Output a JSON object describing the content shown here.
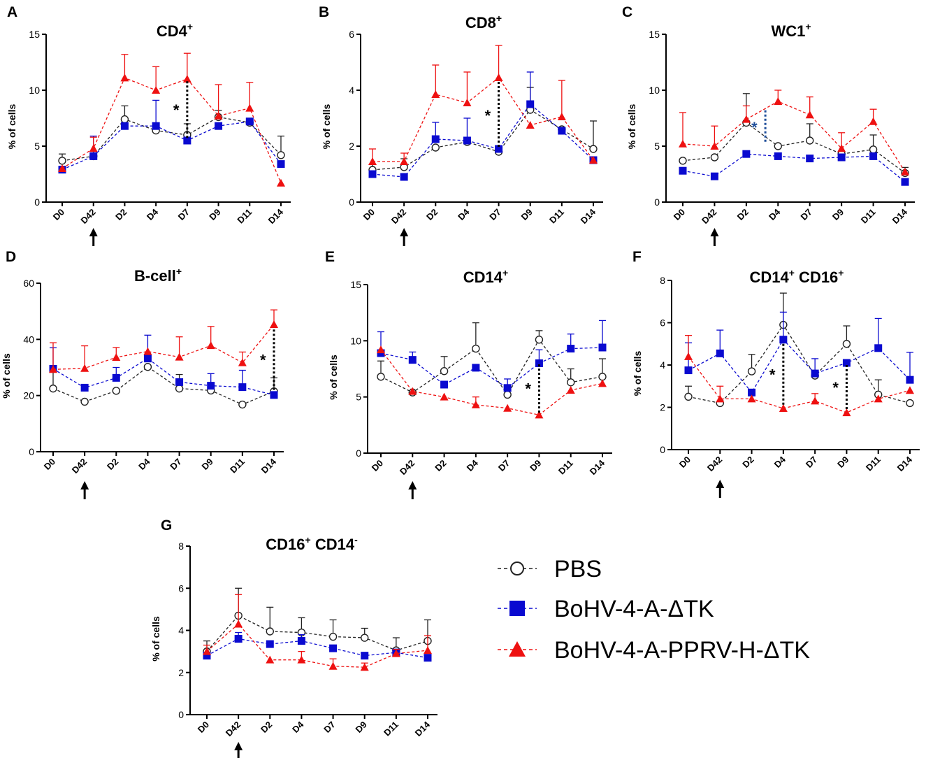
{
  "colors": {
    "pbs": "#222222",
    "ctrl": "#0a0ad0",
    "vacc": "#ee1111",
    "axis": "#000000",
    "star_blue": "#1f4e9a"
  },
  "legend": [
    {
      "label": "PBS",
      "marker": "circle",
      "color": "#222222"
    },
    {
      "label": "BoHV-4-A-ΔTK",
      "marker": "square",
      "color": "#0a0ad0"
    },
    {
      "label": "BoHV-4-A-PPRV-H-ΔTK",
      "marker": "triangle",
      "color": "#ee1111"
    }
  ],
  "chart_data": [
    {
      "panel": "A",
      "type": "line",
      "title": "CD4",
      "title_sup": "+",
      "ylabel": "% of cells",
      "categories": [
        "D0",
        "D42",
        "D2",
        "D4",
        "D7",
        "D9",
        "D11",
        "D14"
      ],
      "ylim": [
        0,
        15
      ],
      "yticks": [
        "0",
        "5",
        "10",
        "15"
      ],
      "arrow_category": "D42",
      "series": [
        {
          "name": "PBS",
          "values": [
            3.7,
            4.1,
            7.4,
            6.4,
            6.0,
            7.6,
            7.1,
            4.2
          ],
          "err": [
            0.6,
            0,
            1.2,
            0,
            1.0,
            0.6,
            0.4,
            1.7
          ]
        },
        {
          "name": "BoHV-4-A-ΔTK",
          "values": [
            2.9,
            4.1,
            6.8,
            6.8,
            5.5,
            6.8,
            7.2,
            3.4
          ],
          "err": [
            0,
            1.8,
            0,
            2.3,
            0,
            0,
            0,
            0
          ]
        },
        {
          "name": "BoHV-4-A-PPRV-H-ΔTK",
          "values": [
            3.0,
            4.8,
            11.1,
            10.0,
            11.0,
            7.7,
            8.4,
            1.7
          ],
          "err": [
            0,
            1.0,
            2.1,
            2.1,
            2.3,
            2.8,
            2.3,
            0
          ]
        }
      ],
      "significance": [
        {
          "category_index": 4,
          "from": 10.8,
          "to": 5.7,
          "label": "*"
        }
      ]
    },
    {
      "panel": "B",
      "type": "line",
      "title": "CD8",
      "title_sup": "+",
      "ylabel": "% of cells",
      "categories": [
        "D0",
        "D42",
        "D2",
        "D4",
        "D7",
        "D9",
        "D11",
        "D14"
      ],
      "ylim": [
        0,
        6
      ],
      "yticks": [
        "0",
        "2",
        "4",
        "6"
      ],
      "arrow_category": "D42",
      "series": [
        {
          "name": "PBS",
          "values": [
            1.15,
            1.25,
            1.95,
            2.15,
            1.8,
            3.3,
            2.6,
            1.9
          ],
          "err": [
            0.2,
            0.3,
            0,
            0,
            0,
            0.8,
            0,
            1.0
          ]
        },
        {
          "name": "BoHV-4-A-ΔTK",
          "values": [
            1.0,
            0.9,
            2.25,
            2.2,
            1.9,
            3.5,
            2.55,
            1.5
          ],
          "err": [
            0,
            0,
            0.6,
            0.8,
            0,
            1.15,
            0,
            0
          ]
        },
        {
          "name": "BoHV-4-A-PPRV-H-ΔTK",
          "values": [
            1.45,
            1.45,
            3.85,
            3.55,
            4.45,
            2.75,
            3.05,
            1.5
          ],
          "err": [
            0.45,
            0.3,
            1.05,
            1.1,
            1.15,
            0,
            1.3,
            0
          ]
        }
      ],
      "significance": [
        {
          "category_index": 4,
          "from": 4.3,
          "to": 1.9,
          "label": "*"
        }
      ]
    },
    {
      "panel": "C",
      "type": "line",
      "title": "WC1",
      "title_sup": "+",
      "ylabel": "% of cells",
      "categories": [
        "D0",
        "D42",
        "D2",
        "D4",
        "D7",
        "D9",
        "D11",
        "D14"
      ],
      "ylim": [
        0,
        15
      ],
      "yticks": [
        "0",
        "5",
        "10",
        "15"
      ],
      "arrow_category": "D42",
      "series": [
        {
          "name": "PBS",
          "values": [
            3.7,
            4.0,
            7.1,
            5.0,
            5.5,
            4.3,
            4.7,
            2.6
          ],
          "err": [
            0,
            0,
            2.6,
            0,
            1.5,
            0,
            1.3,
            0.5
          ]
        },
        {
          "name": "BoHV-4-A-ΔTK",
          "values": [
            2.8,
            2.3,
            4.3,
            4.1,
            3.9,
            4.0,
            4.1,
            1.8
          ],
          "err": [
            0,
            0,
            0,
            0,
            0,
            0,
            0,
            0
          ]
        },
        {
          "name": "BoHV-4-A-PPRV-H-ΔTK",
          "values": [
            5.2,
            5.0,
            7.4,
            9.0,
            7.8,
            4.8,
            7.2,
            2.7
          ],
          "err": [
            2.8,
            1.8,
            1.2,
            1.0,
            1.6,
            1.4,
            1.1,
            0
          ]
        }
      ],
      "significance": [
        {
          "category_index": 2.6,
          "from": 8.2,
          "to": 5.2,
          "label": "*",
          "color": "blue"
        }
      ]
    },
    {
      "panel": "D",
      "type": "line",
      "title": "B-cell",
      "title_sup": "+",
      "ylabel": "% of cells",
      "categories": [
        "D0",
        "D42",
        "D2",
        "D4",
        "D7",
        "D9",
        "D11",
        "D14"
      ],
      "ylim": [
        0,
        60
      ],
      "yticks": [
        "0",
        "20",
        "40",
        "60"
      ],
      "arrow_category": "D42",
      "series": [
        {
          "name": "PBS",
          "values": [
            22.5,
            17.8,
            21.7,
            30.2,
            22.5,
            21.8,
            16.8,
            21.5
          ],
          "err": [
            6.5,
            0,
            0,
            0,
            5.0,
            0,
            0,
            4.8
          ]
        },
        {
          "name": "BoHV-4-A-ΔTK",
          "values": [
            29.5,
            22.8,
            26.3,
            33.2,
            24.8,
            23.5,
            23.0,
            20.2
          ],
          "err": [
            7.5,
            0,
            3.7,
            8.3,
            0,
            4.3,
            6.0,
            0
          ]
        },
        {
          "name": "BoHV-4-A-PPRV-H-ΔTK",
          "values": [
            29.3,
            29.7,
            33.6,
            35.7,
            33.7,
            37.8,
            31.7,
            45.3
          ],
          "err": [
            9.5,
            8.0,
            3.5,
            0,
            7.2,
            6.8,
            3.8,
            5.2
          ]
        }
      ],
      "significance": [
        {
          "category_index": 7,
          "from": 43.5,
          "to": 22.0,
          "label": "*"
        }
      ]
    },
    {
      "panel": "E",
      "type": "line",
      "title": "CD14",
      "title_sup": "+",
      "ylabel": "% of cells",
      "categories": [
        "D0",
        "D42",
        "D2",
        "D4",
        "D7",
        "D9",
        "D11",
        "D14"
      ],
      "ylim": [
        0,
        15
      ],
      "yticks": [
        "0",
        "5",
        "10",
        "15"
      ],
      "arrow_category": "D42",
      "series": [
        {
          "name": "PBS",
          "values": [
            6.8,
            5.4,
            7.3,
            9.3,
            5.2,
            10.1,
            6.3,
            6.8
          ],
          "err": [
            1.4,
            0,
            1.3,
            2.3,
            0,
            0.8,
            1.2,
            1.6
          ]
        },
        {
          "name": "BoHV-4-A-ΔTK",
          "values": [
            8.9,
            8.3,
            6.1,
            7.6,
            5.8,
            8.0,
            9.3,
            9.4
          ],
          "err": [
            1.9,
            0.7,
            0,
            0,
            0.8,
            1.2,
            1.3,
            2.4
          ]
        },
        {
          "name": "BoHV-4-A-PPRV-H-ΔTK",
          "values": [
            9.2,
            5.5,
            5.0,
            4.3,
            4.0,
            3.4,
            5.6,
            6.2
          ],
          "err": [
            0,
            0,
            0,
            0.7,
            0,
            0,
            0,
            0
          ]
        }
      ],
      "significance": [
        {
          "category_index": 5,
          "from": 7.9,
          "to": 3.6,
          "label": "*"
        }
      ]
    },
    {
      "panel": "F",
      "type": "line",
      "title": "CD14",
      "title_sup": "+",
      "title2": " CD16",
      "title2_sup": "+",
      "ylabel": "% of cells",
      "categories": [
        "D0",
        "D42",
        "D2",
        "D4",
        "D7",
        "D9",
        "D11",
        "D14"
      ],
      "ylim": [
        0,
        8
      ],
      "yticks": [
        "0",
        "2",
        "4",
        "6",
        "8"
      ],
      "arrow_category": "D42",
      "series": [
        {
          "name": "PBS",
          "values": [
            2.5,
            2.2,
            3.7,
            5.9,
            3.5,
            5.0,
            2.6,
            2.2
          ],
          "err": [
            0.5,
            0,
            0.8,
            1.5,
            0,
            0.85,
            0.7,
            0
          ]
        },
        {
          "name": "BoHV-4-A-ΔTK",
          "values": [
            3.75,
            4.55,
            2.7,
            5.2,
            3.6,
            4.1,
            4.8,
            3.3
          ],
          "err": [
            1.3,
            1.1,
            0,
            1.3,
            0.7,
            0,
            1.4,
            1.3
          ]
        },
        {
          "name": "BoHV-4-A-PPRV-H-ΔTK",
          "values": [
            4.4,
            2.4,
            2.4,
            1.95,
            2.3,
            1.75,
            2.4,
            2.8
          ],
          "err": [
            1.0,
            0.6,
            0,
            0,
            0.35,
            0,
            0,
            0
          ]
        }
      ],
      "significance": [
        {
          "category_index": 3,
          "from": 5.0,
          "to": 2.1,
          "label": "*"
        },
        {
          "category_index": 5,
          "from": 4.0,
          "to": 1.9,
          "label": "*"
        }
      ]
    },
    {
      "panel": "G",
      "type": "line",
      "title": "CD16",
      "title_sup": "+",
      "title2": " CD14",
      "title2_sup": "-",
      "ylabel": "% of cells",
      "categories": [
        "D0",
        "D42",
        "D2",
        "D4",
        "D7",
        "D9",
        "D11",
        "D14"
      ],
      "ylim": [
        0,
        8
      ],
      "yticks": [
        "0",
        "2",
        "4",
        "6",
        "8"
      ],
      "arrow_category": "D42",
      "series": [
        {
          "name": "PBS",
          "values": [
            3.0,
            4.7,
            3.95,
            3.9,
            3.7,
            3.65,
            3.05,
            3.5
          ],
          "err": [
            0.5,
            1.3,
            1.15,
            0.7,
            0.8,
            0.45,
            0.6,
            1.0
          ]
        },
        {
          "name": "BoHV-4-A-ΔTK",
          "values": [
            2.8,
            3.6,
            3.35,
            3.5,
            3.15,
            2.8,
            2.95,
            2.7
          ],
          "err": [
            0,
            0.3,
            0,
            0.3,
            0,
            0,
            0,
            0
          ]
        },
        {
          "name": "BoHV-4-A-PPRV-H-ΔTK",
          "values": [
            3.0,
            4.3,
            2.6,
            2.6,
            2.3,
            2.25,
            2.9,
            3.05
          ],
          "err": [
            0.3,
            1.4,
            0,
            0.4,
            0.35,
            0.2,
            0.2,
            0.7
          ]
        }
      ],
      "significance": []
    }
  ]
}
